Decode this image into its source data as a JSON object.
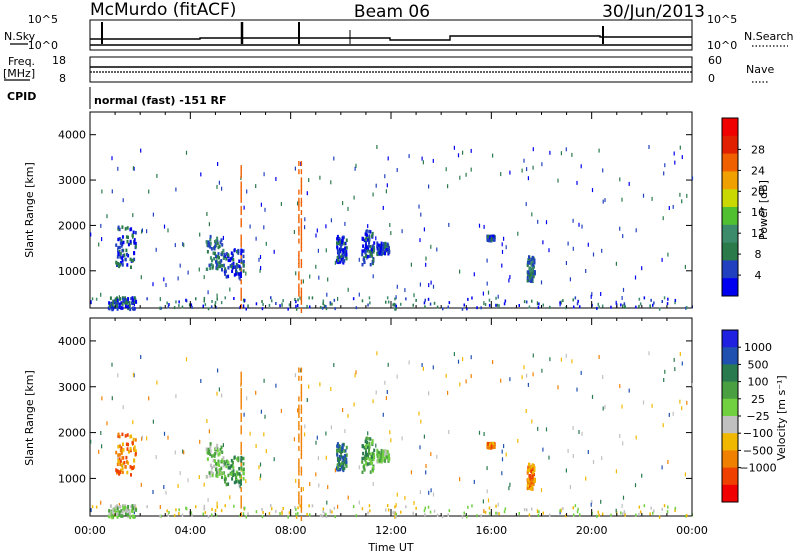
{
  "header": {
    "station": "McMurdo (fitACF)",
    "beam": "Beam 06",
    "date": "30/Jun/2013"
  },
  "strip_labels": {
    "nsky": "N.Sky",
    "nsearch": "N.Search",
    "freq": "Freq.",
    "mhz": "[MHz]",
    "nave": "Nave",
    "cpid": "CPID",
    "mode": "normal (fast) -151 RF",
    "nsky_ticks": [
      "10^5",
      "10^0"
    ],
    "nsearch_ticks": [
      "10^5",
      "10^0"
    ],
    "freq_ticks": [
      "18",
      "8"
    ],
    "nave_ticks": [
      "60",
      "0"
    ]
  },
  "colors": {
    "power": [
      "#0000f0",
      "#2040c0",
      "#2a7a4a",
      "#3c8c6c",
      "#50c030",
      "#c8d800",
      "#f0a000",
      "#f06000",
      "#e02000",
      "#f00000"
    ],
    "velocity": [
      "#2020e0",
      "#2050b0",
      "#2a7a50",
      "#4aa040",
      "#70d040",
      "#c0c0c0",
      "#f0b800",
      "#f08000",
      "#f04000",
      "#f00000"
    ]
  },
  "chart_data": [
    {
      "type": "heatmap",
      "name": "power",
      "ylabel": "Slant Range [km]",
      "xlabel": "",
      "x_range_hours": [
        0,
        24
      ],
      "ylim": [
        180,
        4500
      ],
      "x_ticks": [],
      "y_ticks": [
        "1000",
        "2000",
        "3000",
        "4000"
      ],
      "y_tick_values": [
        1000,
        2000,
        3000,
        4000
      ],
      "colorbar": {
        "label": "Power [dB]",
        "ticks": [
          "4",
          "8",
          "12",
          "16",
          "20",
          "24",
          "28"
        ]
      },
      "patches": [
        {
          "t0": 1.0,
          "t1": 1.8,
          "r0": 1100,
          "r1": 2000,
          "level": 1
        },
        {
          "t0": 4.6,
          "t1": 5.3,
          "r0": 1000,
          "r1": 1800,
          "level": 2
        },
        {
          "t0": 5.3,
          "t1": 6.1,
          "r0": 900,
          "r1": 1500,
          "level": 1
        },
        {
          "t0": 9.8,
          "t1": 10.2,
          "r0": 1200,
          "r1": 1800,
          "level": 1
        },
        {
          "t0": 10.8,
          "t1": 11.3,
          "r0": 1150,
          "r1": 1950,
          "level": 1
        },
        {
          "t0": 11.4,
          "t1": 11.9,
          "r0": 1400,
          "r1": 1650,
          "level": 1
        },
        {
          "t0": 15.8,
          "t1": 16.1,
          "r0": 1700,
          "r1": 1800,
          "level": 1
        },
        {
          "t0": 17.4,
          "t1": 17.7,
          "r0": 800,
          "r1": 1350,
          "level": 2
        },
        {
          "t0": 0.7,
          "t1": 1.8,
          "r0": 180,
          "r1": 450,
          "level": 1
        }
      ]
    },
    {
      "type": "heatmap",
      "name": "velocity",
      "ylabel": "Slant Range [km]",
      "xlabel": "Time UT",
      "x_range_hours": [
        0,
        24
      ],
      "ylim": [
        180,
        4500
      ],
      "x_ticks": [
        "00:00",
        "04:00",
        "08:00",
        "12:00",
        "16:00",
        "20:00",
        "00:00"
      ],
      "x_tick_values": [
        0,
        4,
        8,
        12,
        16,
        20,
        24
      ],
      "y_ticks": [
        "1000",
        "2000",
        "3000",
        "4000"
      ],
      "y_tick_values": [
        1000,
        2000,
        3000,
        4000
      ],
      "colorbar": {
        "label": "Velocity [m s⁻¹]",
        "ticks": [
          "1000",
          "500",
          "100",
          "25",
          "−25",
          "−100",
          "−500",
          "−1000"
        ]
      },
      "patches": [
        {
          "t0": 1.0,
          "t1": 1.8,
          "r0": 1100,
          "r1": 2000,
          "level": 7
        },
        {
          "t0": 4.6,
          "t1": 5.3,
          "r0": 1000,
          "r1": 1800,
          "level": 4
        },
        {
          "t0": 5.3,
          "t1": 6.1,
          "r0": 900,
          "r1": 1500,
          "level": 3
        },
        {
          "t0": 9.8,
          "t1": 10.2,
          "r0": 1200,
          "r1": 1800,
          "level": 2
        },
        {
          "t0": 10.8,
          "t1": 11.3,
          "r0": 1150,
          "r1": 1950,
          "level": 3
        },
        {
          "t0": 11.4,
          "t1": 11.9,
          "r0": 1400,
          "r1": 1650,
          "level": 4
        },
        {
          "t0": 15.8,
          "t1": 16.1,
          "r0": 1700,
          "r1": 1800,
          "level": 7
        },
        {
          "t0": 17.4,
          "t1": 17.7,
          "r0": 800,
          "r1": 1350,
          "level": 7
        },
        {
          "t0": 0.7,
          "t1": 1.8,
          "r0": 180,
          "r1": 450,
          "level": 4
        }
      ]
    }
  ]
}
